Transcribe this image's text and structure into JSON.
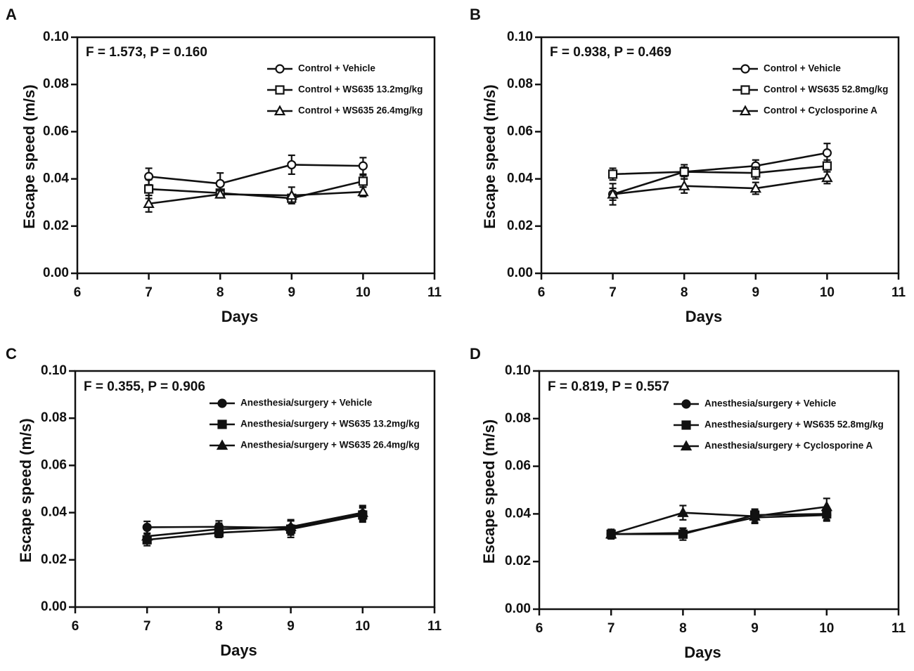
{
  "figure": {
    "panels": [
      {
        "letter": "A",
        "stat": "F = 1.573, P = 0.160",
        "series": [
          {
            "name": "Control + Vehicle",
            "marker": "circle-open"
          },
          {
            "name": "Control + WS635 13.2mg/kg",
            "marker": "square-open"
          },
          {
            "name": "Control + WS635 26.4mg/kg",
            "marker": "triangle-open"
          }
        ]
      },
      {
        "letter": "B",
        "stat": "F = 0.938, P = 0.469",
        "series": [
          {
            "name": "Control + Vehicle",
            "marker": "circle-open"
          },
          {
            "name": "Control + WS635 52.8mg/kg",
            "marker": "square-open"
          },
          {
            "name": "Control + Cyclosporine A",
            "marker": "triangle-open"
          }
        ]
      },
      {
        "letter": "C",
        "stat": "F = 0.355, P = 0.906",
        "series": [
          {
            "name": "Anesthesia/surgery + Vehicle",
            "marker": "circle-filled"
          },
          {
            "name": "Anesthesia/surgery + WS635 13.2mg/kg",
            "marker": "square-filled"
          },
          {
            "name": "Anesthesia/surgery + WS635 26.4mg/kg",
            "marker": "triangle-filled"
          }
        ]
      },
      {
        "letter": "D",
        "stat": "F = 0.819, P = 0.557",
        "series": [
          {
            "name": "Anesthesia/surgery + Vehicle",
            "marker": "circle-filled"
          },
          {
            "name": "Anesthesia/surgery + WS635 52.8mg/kg",
            "marker": "square-filled"
          },
          {
            "name": "Anesthesia/surgery + Cyclosporine A",
            "marker": "triangle-filled"
          }
        ]
      }
    ]
  },
  "chart_data": [
    {
      "panel": "A",
      "type": "line",
      "title": "",
      "xlabel": "Days",
      "ylabel": "Escape speed (m/s)",
      "xlim": [
        6,
        11
      ],
      "ylim": [
        0.0,
        0.1
      ],
      "x_ticks": [
        "6",
        "7",
        "8",
        "9",
        "10",
        "11"
      ],
      "y_ticks": [
        "0.00",
        "0.02",
        "0.04",
        "0.06",
        "0.08",
        "0.10"
      ],
      "annotation": "F = 1.573, P = 0.160",
      "x": [
        7,
        8,
        9,
        10
      ],
      "series": [
        {
          "name": "Control + Vehicle",
          "values": [
            0.041,
            0.038,
            0.046,
            0.0455
          ],
          "errors": [
            0.0035,
            0.0045,
            0.004,
            0.0035
          ]
        },
        {
          "name": "Control + WS635 13.2mg/kg",
          "values": [
            0.0357,
            0.034,
            0.0318,
            0.039
          ],
          "errors": [
            0.004,
            0.0015,
            0.0015,
            0.0025
          ]
        },
        {
          "name": "Control + WS635 26.4mg/kg",
          "values": [
            0.0295,
            0.0335,
            0.033,
            0.0345
          ],
          "errors": [
            0.0035,
            0.0015,
            0.0035,
            0.002
          ]
        }
      ]
    },
    {
      "panel": "B",
      "type": "line",
      "title": "",
      "xlabel": "Days",
      "ylabel": "Escape speed (m/s)",
      "xlim": [
        6,
        11
      ],
      "ylim": [
        0.0,
        0.1
      ],
      "x_ticks": [
        "6",
        "7",
        "8",
        "9",
        "10",
        "11"
      ],
      "y_ticks": [
        "0.00",
        "0.02",
        "0.04",
        "0.06",
        "0.08",
        "0.10"
      ],
      "annotation": "F = 0.938, P = 0.469",
      "x": [
        7,
        8,
        9,
        10
      ],
      "series": [
        {
          "name": "Control + Vehicle",
          "values": [
            0.0335,
            0.043,
            0.0455,
            0.051
          ],
          "errors": [
            0.0025,
            0.002,
            0.0025,
            0.004
          ]
        },
        {
          "name": "Control + WS635 52.8mg/kg",
          "values": [
            0.042,
            0.043,
            0.0425,
            0.0455
          ],
          "errors": [
            0.0025,
            0.003,
            0.0025,
            0.0025
          ]
        },
        {
          "name": "Control + Cyclosporine A",
          "values": [
            0.0335,
            0.037,
            0.036,
            0.0405
          ],
          "errors": [
            0.0045,
            0.003,
            0.0025,
            0.0025
          ]
        }
      ]
    },
    {
      "panel": "C",
      "type": "line",
      "title": "",
      "xlabel": "Days",
      "ylabel": "Escape speed (m/s)",
      "xlim": [
        6,
        11
      ],
      "ylim": [
        0.0,
        0.1
      ],
      "x_ticks": [
        "6",
        "7",
        "8",
        "9",
        "10",
        "11"
      ],
      "y_ticks": [
        "0.00",
        "0.02",
        "0.04",
        "0.06",
        "0.08",
        "0.10"
      ],
      "annotation": "F = 0.355, P = 0.906",
      "x": [
        7,
        8,
        9,
        10
      ],
      "series": [
        {
          "name": "Anesthesia/surgery + Vehicle",
          "values": [
            0.0338,
            0.034,
            0.0335,
            0.0395
          ],
          "errors": [
            0.0025,
            0.0025,
            0.003,
            0.003
          ]
        },
        {
          "name": "Anesthesia/surgery + WS635 13.2mg/kg",
          "values": [
            0.0285,
            0.0315,
            0.033,
            0.039
          ],
          "errors": [
            0.0025,
            0.002,
            0.0035,
            0.003
          ]
        },
        {
          "name": "Anesthesia/surgery + WS635 26.4mg/kg",
          "values": [
            0.03,
            0.033,
            0.034,
            0.04
          ],
          "errors": [
            0.003,
            0.0025,
            0.003,
            0.003
          ]
        }
      ]
    },
    {
      "panel": "D",
      "type": "line",
      "title": "",
      "xlabel": "Days",
      "ylabel": "Escape speed (m/s)",
      "xlim": [
        6,
        11
      ],
      "ylim": [
        0.0,
        0.1
      ],
      "x_ticks": [
        "6",
        "7",
        "8",
        "9",
        "10",
        "11"
      ],
      "y_ticks": [
        "0.00",
        "0.02",
        "0.04",
        "0.06",
        "0.08",
        "0.10"
      ],
      "annotation": "F = 0.819, P = 0.557",
      "x": [
        7,
        8,
        9,
        10
      ],
      "series": [
        {
          "name": "Anesthesia/surgery + Vehicle",
          "values": [
            0.0315,
            0.032,
            0.0385,
            0.0395
          ],
          "errors": [
            0.0015,
            0.002,
            0.002,
            0.0025
          ]
        },
        {
          "name": "Anesthesia/surgery + WS635 52.8mg/kg",
          "values": [
            0.0315,
            0.0315,
            0.0395,
            0.04
          ],
          "errors": [
            0.002,
            0.0025,
            0.002,
            0.0025
          ]
        },
        {
          "name": "Anesthesia/surgery + Cyclosporine A",
          "values": [
            0.0315,
            0.0405,
            0.039,
            0.043
          ],
          "errors": [
            0.0015,
            0.003,
            0.003,
            0.0035
          ]
        }
      ]
    }
  ]
}
